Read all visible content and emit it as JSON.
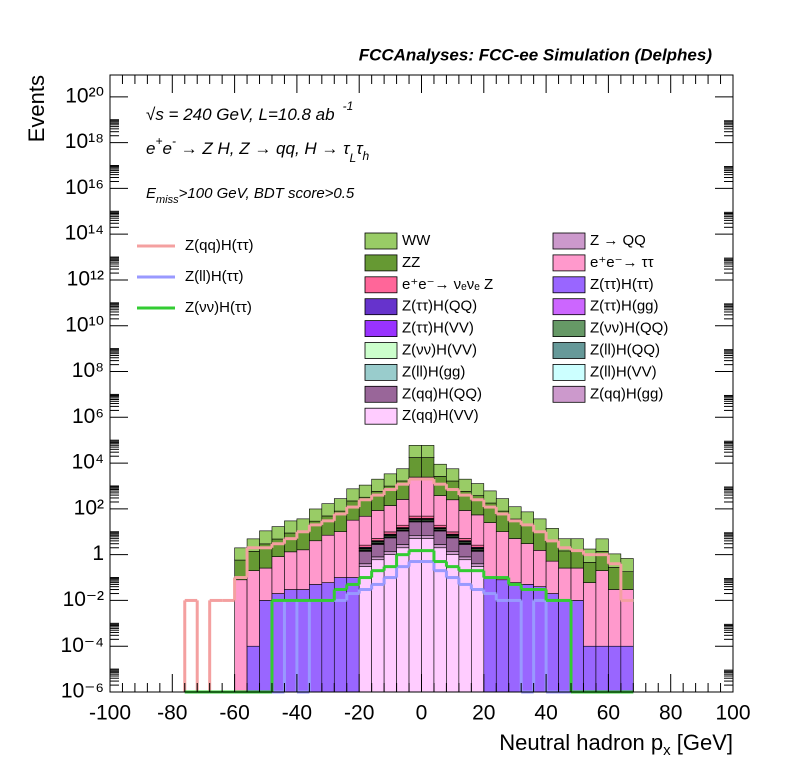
{
  "chart_data": {
    "type": "stacked_histogram",
    "title": "FCCAnalyses: FCC-ee Simulation (Delphes)",
    "annotations": [
      [
        "√s = 240 GeV, L=10.8 ab",
        "-1"
      ],
      [
        "e",
        "+",
        "e",
        "-",
        " → Z H, Z  → qq, H  → τ",
        "L",
        "τ",
        "h"
      ],
      [
        "E",
        "miss",
        ">100 GeV, BDT score>0.5"
      ]
    ],
    "ylabel": "Events",
    "xlabel": [
      "Neutral hadron p",
      "x",
      " [GeV]"
    ],
    "xlim": [
      -100,
      100
    ],
    "xticks": [
      -100,
      -80,
      -60,
      -40,
      -20,
      0,
      20,
      40,
      60,
      80,
      100
    ],
    "ylim": [
      1e-06,
      9e+20
    ],
    "log_y": true,
    "yticks": [
      {
        "value": 1e-06,
        "label": "10⁻⁶"
      },
      {
        "value": 0.0001,
        "label": "10⁻⁴"
      },
      {
        "value": 0.01,
        "label": "10⁻²"
      },
      1,
      {
        "value": 100.0,
        "label": "10²"
      },
      {
        "value": 10000.0,
        "label": "10⁴"
      },
      {
        "value": 1000000.0,
        "label": "10⁶"
      },
      {
        "value": 100000000.0,
        "label": "10⁸"
      },
      {
        "value": 10000000000.0,
        "label": "10¹⁰"
      },
      {
        "value": 1000000000000.0,
        "label": "10¹²"
      },
      {
        "value": 100000000000000.0,
        "label": "10¹⁴"
      },
      {
        "value": 1e+16,
        "label": "10¹⁶"
      },
      {
        "value": 1e+18,
        "label": "10¹⁸"
      },
      {
        "value": 1e+20,
        "label": "10²⁰"
      }
    ],
    "bins": [
      -76,
      -72,
      -68,
      -64,
      -60,
      -56,
      -52,
      -48,
      -44,
      -40,
      -36,
      -32,
      -28,
      -24,
      -20,
      -16,
      -12,
      -8,
      -4,
      0,
      4,
      8,
      12,
      16,
      20,
      24,
      28,
      32,
      36,
      40,
      44,
      48,
      52,
      56,
      60,
      64,
      68
    ],
    "series": [
      {
        "name": "WW",
        "color": "#99cc66",
        "values": [
          0,
          0,
          0,
          0,
          1.4,
          3.5,
          8,
          12,
          21,
          26,
          70,
          120,
          200,
          530,
          770,
          1400,
          2400,
          4000,
          42000,
          42000,
          6300,
          4000,
          1400,
          900,
          430,
          200,
          88,
          52,
          26,
          10,
          3.5,
          3.5,
          1.3,
          3.5,
          0.8,
          0.5
        ]
      },
      {
        "name": "Z → QQ",
        "color": "#cc99cc",
        "values": [
          0,
          0,
          0,
          0,
          0,
          0,
          0,
          0,
          0,
          0,
          0,
          0,
          0,
          0,
          0,
          0,
          0,
          0,
          0.8,
          0.8,
          0,
          0,
          0,
          0,
          0,
          0,
          0,
          0,
          0,
          0,
          0,
          0,
          0,
          0,
          0,
          0
        ]
      },
      {
        "name": "ZZ",
        "color": "#669933",
        "values": [
          0,
          0,
          0,
          0,
          0.5,
          1.2,
          2.7,
          4,
          7.5,
          9,
          25,
          42,
          70,
          190,
          275,
          500,
          850,
          1400,
          15000,
          15000,
          2250,
          1400,
          500,
          325,
          155,
          70,
          31,
          19,
          9,
          3.5,
          1.2,
          1.2,
          0.4,
          1.2,
          0.25,
          0.15
        ]
      },
      {
        "name": "e⁺e⁻→ ττ",
        "color": "#ff99cc",
        "values": [
          0,
          0,
          0,
          0,
          0.08,
          0.2,
          0.25,
          0.8,
          1.3,
          1.6,
          4,
          7,
          10,
          32,
          45,
          80,
          130,
          240,
          2400,
          2400,
          360,
          240,
          80,
          52,
          25,
          10,
          5,
          3,
          1.5,
          0.5,
          0.25,
          0.25,
          0.06,
          0.2,
          0.03,
          0.03
        ]
      },
      {
        "name": "e⁺e⁻→ νₑνₑ Z",
        "color": "#ff6699",
        "values": [
          0,
          0,
          0,
          0,
          0,
          0,
          0,
          0,
          0,
          0,
          0,
          0,
          0,
          0,
          0.5,
          1,
          2,
          4,
          10,
          10,
          4,
          2,
          1,
          0.5,
          0,
          0,
          0,
          0,
          0,
          0,
          0,
          0,
          0,
          0,
          0,
          0
        ]
      },
      {
        "name": "Z(ττ)H(ττ)",
        "color": "#9966ff",
        "values": [
          0,
          0,
          0,
          0,
          0,
          0.0001,
          0.01,
          0.02,
          0.03,
          0.03,
          0.05,
          0.06,
          0.1,
          0.1,
          0.15,
          0.2,
          0.3,
          0.3,
          0.5,
          0.5,
          0.3,
          0.3,
          0.2,
          0.15,
          0.1,
          0.08,
          0.06,
          0.05,
          0.04,
          0.02,
          0.01,
          0.01,
          0.0001,
          0.0001,
          0.0001,
          0.0001
        ]
      },
      {
        "name": "Z(ττ)H(QQ)",
        "color": "#6633cc",
        "values": [
          0,
          0,
          0,
          0,
          0,
          0,
          0,
          0,
          0,
          0,
          0,
          0,
          0,
          0,
          0.1,
          0.2,
          0.4,
          0.8,
          2,
          2,
          0.8,
          0.4,
          0.2,
          0.1,
          0,
          0,
          0,
          0,
          0,
          0,
          0,
          0,
          0,
          0,
          0,
          0
        ]
      },
      {
        "name": "Z(ττ)H(gg)",
        "color": "#cc66ff",
        "values": [
          0,
          0,
          0,
          0,
          0,
          0,
          0,
          0,
          0,
          0,
          0,
          0,
          0,
          0,
          0.02,
          0.04,
          0.08,
          0.15,
          0.4,
          0.4,
          0.15,
          0.08,
          0.04,
          0.02,
          0,
          0,
          0,
          0,
          0,
          0,
          0,
          0,
          0,
          0,
          0,
          0
        ]
      },
      {
        "name": "Z(ττ)H(VV)",
        "color": "#9933ff",
        "values": [
          0,
          0,
          0,
          0,
          0,
          0,
          0,
          0,
          0,
          0,
          0,
          0,
          0,
          0,
          0.05,
          0.1,
          0.2,
          0.4,
          1,
          1,
          0.4,
          0.2,
          0.1,
          0.05,
          0,
          0,
          0,
          0,
          0,
          0,
          0,
          0,
          0,
          0,
          0,
          0
        ]
      },
      {
        "name": "Z(νν)H(QQ)",
        "color": "#669966",
        "values": [
          0,
          0,
          0,
          0,
          0,
          0,
          0,
          0,
          0,
          0,
          0,
          0,
          0,
          0,
          0.2,
          0.4,
          0.8,
          1.5,
          4,
          4,
          1.5,
          0.8,
          0.4,
          0.2,
          0,
          0,
          0,
          0,
          0,
          0,
          0,
          0,
          0,
          0,
          0,
          0
        ]
      },
      {
        "name": "Z(νν)H(VV)",
        "color": "#ccffcc",
        "values": [
          0,
          0,
          0,
          0,
          0,
          0,
          0,
          0,
          0,
          0,
          0,
          0,
          0,
          0,
          0.03,
          0.06,
          0.1,
          0.2,
          0.5,
          0.5,
          0.2,
          0.1,
          0.06,
          0.03,
          0,
          0,
          0,
          0,
          0,
          0,
          0,
          0,
          0,
          0,
          0,
          0
        ]
      },
      {
        "name": "Z(ll)H(QQ)",
        "color": "#669999",
        "values": [
          0,
          0,
          0,
          0,
          0,
          0,
          0,
          0,
          0,
          0,
          0,
          0,
          0,
          0,
          0.1,
          0.2,
          0.4,
          0.8,
          2,
          2,
          0.8,
          0.4,
          0.2,
          0.1,
          0,
          0,
          0,
          0,
          0,
          0,
          0,
          0,
          0,
          0,
          0,
          0
        ]
      },
      {
        "name": "Z(ll)H(gg)",
        "color": "#99cccc",
        "values": [
          0,
          0,
          0,
          0,
          0,
          0,
          0,
          0,
          0,
          0,
          0,
          0,
          0,
          0,
          0.02,
          0.04,
          0.08,
          0.15,
          0.4,
          0.4,
          0.15,
          0.08,
          0.04,
          0.02,
          0,
          0,
          0,
          0,
          0,
          0,
          0,
          0,
          0,
          0,
          0,
          0
        ]
      },
      {
        "name": "Z(ll)H(VV)",
        "color": "#ccffff",
        "values": [
          0,
          0,
          0,
          0,
          0,
          0,
          0,
          0,
          0,
          0,
          0,
          0,
          0,
          0,
          0.03,
          0.06,
          0.1,
          0.2,
          0.5,
          0.5,
          0.2,
          0.1,
          0.06,
          0.03,
          0,
          0,
          0,
          0,
          0,
          0,
          0,
          0,
          0,
          0,
          0,
          0
        ]
      },
      {
        "name": "Z(qq)H(QQ)",
        "color": "#996699",
        "values": [
          0,
          0,
          0,
          0,
          0,
          0,
          0,
          0,
          0,
          0,
          0,
          0,
          0,
          0,
          1,
          2,
          4,
          8,
          20,
          20,
          8,
          4,
          2,
          1,
          0,
          0,
          0,
          0,
          0,
          0,
          0,
          0,
          0,
          0,
          0,
          0
        ]
      },
      {
        "name": "Z(qq)H(gg)",
        "color": "#cc99cc",
        "values": [
          0,
          0,
          0,
          0,
          0,
          0,
          0,
          0,
          0,
          0,
          0,
          0,
          0,
          0,
          0.1,
          0.2,
          0.4,
          0.8,
          2,
          2,
          0.8,
          0.4,
          0.2,
          0.1,
          0,
          0,
          0,
          0,
          0,
          0,
          0,
          0,
          0,
          0,
          0,
          0
        ]
      },
      {
        "name": "Z(qq)H(VV)",
        "color": "#ffccff",
        "values": [
          0,
          0,
          0,
          0,
          0,
          0,
          0,
          0,
          0,
          0,
          0,
          0,
          0,
          0,
          0.3,
          0.6,
          1,
          2,
          5,
          5,
          2,
          1,
          0.6,
          0.3,
          0,
          0,
          0,
          0,
          0,
          0,
          0,
          0,
          0,
          0,
          0,
          0
        ]
      }
    ],
    "line_series": [
      {
        "name": "Z(qq)H(ττ)",
        "color": "#f4a0a0",
        "values": [
          0.01,
          0,
          0.01,
          0.01,
          0.1,
          2,
          2,
          3,
          5,
          10,
          20,
          30,
          60,
          120,
          250,
          400,
          700,
          1200,
          2000,
          2000,
          1200,
          700,
          400,
          250,
          120,
          60,
          30,
          20,
          10,
          4,
          2,
          1.5,
          1,
          1,
          0.4,
          0.01
        ]
      },
      {
        "name": "Z(ll)H(ττ)",
        "color": "#9999ff",
        "values": [
          0,
          0,
          0,
          0,
          0,
          0,
          0,
          0,
          0.01,
          0,
          0.01,
          0.01,
          0.01,
          0.02,
          0.03,
          0.05,
          0.1,
          0.3,
          0.5,
          0.5,
          0.2,
          0.1,
          0.05,
          0.03,
          0.02,
          0.01,
          0.01,
          0,
          0.01,
          0,
          0,
          0,
          0,
          0,
          0,
          0
        ]
      },
      {
        "name": "Z(νν)H(ττ)",
        "color": "#33cc33",
        "values": [
          0,
          0,
          0,
          0,
          0,
          0,
          0,
          0.01,
          0.01,
          0.01,
          0.01,
          0.01,
          0.03,
          0.05,
          0.1,
          0.2,
          0.3,
          1,
          1.5,
          1.5,
          0.5,
          0.3,
          0.2,
          0.2,
          0.1,
          0.1,
          0.05,
          0.03,
          0.03,
          0.01,
          0.01,
          0,
          0,
          0,
          0,
          0
        ]
      }
    ]
  }
}
